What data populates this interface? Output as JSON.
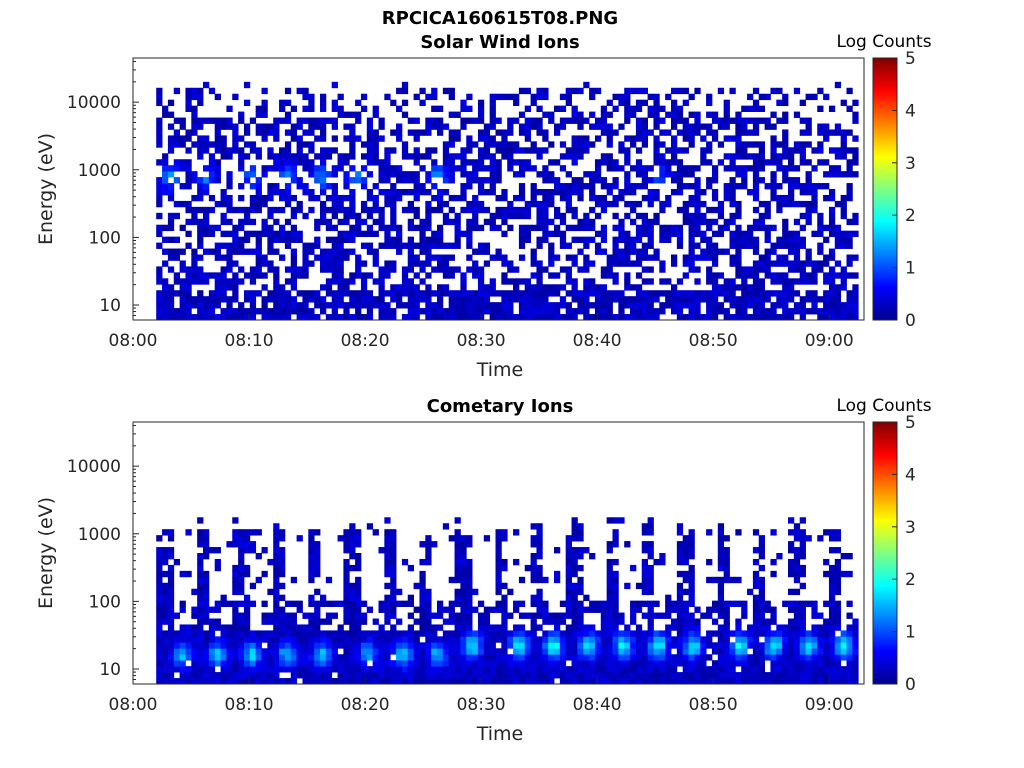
{
  "figure": {
    "title": "RPCICA160615T08.PNG"
  },
  "colormap": [
    "#00008f",
    "#0000ff",
    "#0080ff",
    "#00ffff",
    "#80ff80",
    "#ffff00",
    "#ff8000",
    "#ff0000",
    "#800000"
  ],
  "chart_data": [
    {
      "type": "heatmap",
      "title": "Solar Wind Ions",
      "xlabel": "Time",
      "ylabel": "Energy (eV)",
      "yscale": "log",
      "x_range": [
        "08:00",
        "09:03"
      ],
      "ylim": [
        6,
        45000
      ],
      "x_ticks": [
        "08:00",
        "08:10",
        "08:20",
        "08:30",
        "08:40",
        "08:50",
        "09:00"
      ],
      "y_ticks": [
        "10",
        "100",
        "1000",
        "10000"
      ],
      "colorbar": {
        "label": "Log Counts",
        "range": [
          0,
          5
        ],
        "ticks": [
          "0",
          "1",
          "2",
          "3",
          "4",
          "5"
        ]
      },
      "data_extent": {
        "time_start": "08:02",
        "time_end": "09:02.5",
        "energy_min": 6,
        "energy_max": 15000
      },
      "features": [
        {
          "time": "08:03",
          "energy_eV": 700,
          "log_counts": 1.0
        },
        {
          "time": "08:06",
          "energy_eV": 700,
          "log_counts": 0.9
        },
        {
          "time": "08:10",
          "energy_eV": 700,
          "log_counts": 0.8
        },
        {
          "time": "08:13",
          "energy_eV": 700,
          "log_counts": 0.9
        },
        {
          "time": "08:16",
          "energy_eV": 700,
          "log_counts": 1.0
        },
        {
          "time": "08:19",
          "energy_eV": 700,
          "log_counts": 0.9
        },
        {
          "time": "08:26",
          "energy_eV": 700,
          "log_counts": 1.0
        },
        {
          "time": "08:45",
          "energy_eV": 700,
          "log_counts": 0.7
        }
      ]
    },
    {
      "type": "heatmap",
      "title": "Cometary Ions",
      "xlabel": "Time",
      "ylabel": "Energy (eV)",
      "yscale": "log",
      "x_range": [
        "08:00",
        "09:03"
      ],
      "ylim": [
        6,
        45000
      ],
      "x_ticks": [
        "08:00",
        "08:10",
        "08:20",
        "08:30",
        "08:40",
        "08:50",
        "09:00"
      ],
      "y_ticks": [
        "10",
        "100",
        "1000",
        "10000"
      ],
      "colorbar": {
        "label": "Log Counts",
        "range": [
          0,
          5
        ],
        "ticks": [
          "0",
          "1",
          "2",
          "3",
          "4",
          "5"
        ]
      },
      "data_extent": {
        "time_start": "08:02",
        "time_end": "09:02.5",
        "energy_min": 6,
        "energy_max": 1500
      },
      "features": [
        {
          "time": "08:04",
          "energy_eV": 15,
          "log_counts": 1.3
        },
        {
          "time": "08:07",
          "energy_eV": 15,
          "log_counts": 1.3
        },
        {
          "time": "08:10",
          "energy_eV": 15,
          "log_counts": 1.4
        },
        {
          "time": "08:13",
          "energy_eV": 15,
          "log_counts": 1.3
        },
        {
          "time": "08:16",
          "energy_eV": 15,
          "log_counts": 1.3
        },
        {
          "time": "08:20",
          "energy_eV": 15,
          "log_counts": 1.2
        },
        {
          "time": "08:23",
          "energy_eV": 15,
          "log_counts": 1.4
        },
        {
          "time": "08:26",
          "energy_eV": 15,
          "log_counts": 1.3
        },
        {
          "time": "08:29",
          "energy_eV": 20,
          "log_counts": 1.5
        },
        {
          "time": "08:33",
          "energy_eV": 20,
          "log_counts": 1.6
        },
        {
          "time": "08:36",
          "energy_eV": 20,
          "log_counts": 1.7
        },
        {
          "time": "08:39",
          "energy_eV": 20,
          "log_counts": 1.6
        },
        {
          "time": "08:42",
          "energy_eV": 20,
          "log_counts": 1.6
        },
        {
          "time": "08:45",
          "energy_eV": 20,
          "log_counts": 1.6
        },
        {
          "time": "08:48",
          "energy_eV": 20,
          "log_counts": 1.5
        },
        {
          "time": "08:52",
          "energy_eV": 20,
          "log_counts": 1.6
        },
        {
          "time": "08:55",
          "energy_eV": 20,
          "log_counts": 1.6
        },
        {
          "time": "08:58",
          "energy_eV": 20,
          "log_counts": 1.5
        },
        {
          "time": "09:01",
          "energy_eV": 20,
          "log_counts": 1.6
        }
      ]
    }
  ]
}
